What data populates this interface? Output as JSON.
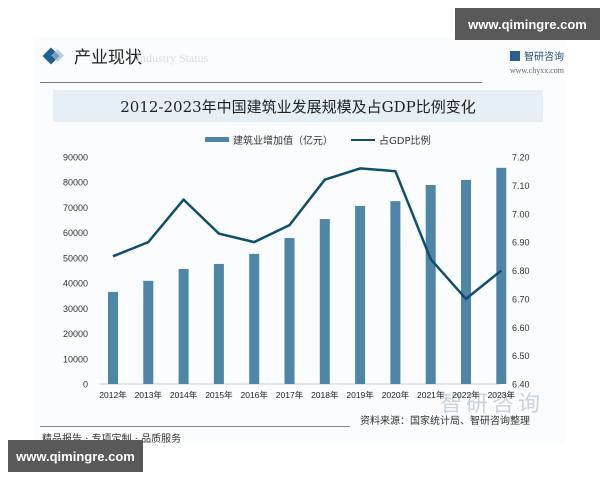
{
  "watermark": {
    "site": "www.qimingre.com"
  },
  "header": {
    "section_title": "产业现状",
    "section_subtitle": "Industry Status",
    "brand_name": "智研咨询",
    "brand_url": "www.chyxx.com"
  },
  "footer": {
    "slogan": "精品报告 · 专项定制 · 品质服务",
    "source": "资料来源：国家统计局、智研咨询整理",
    "watermark_brand": "智研咨询"
  },
  "colors": {
    "bar": "#4e86a8",
    "line": "#0d4f6c",
    "title_band": "#e6eef6"
  },
  "chart_data": {
    "type": "bar",
    "title": "2012-2023年中国建筑业发展规模及占GDP比例变化",
    "categories": [
      "2012年",
      "2013年",
      "2014年",
      "2015年",
      "2016年",
      "2017年",
      "2018年",
      "2019年",
      "2020年",
      "2021年",
      "2022年",
      "2023年"
    ],
    "series": [
      {
        "name": "建筑业增加值（亿元）",
        "type": "bar",
        "axis": "left",
        "values": [
          36500,
          40900,
          45600,
          47600,
          51600,
          57900,
          65400,
          70600,
          72500,
          78900,
          80900,
          85700
        ]
      },
      {
        "name": "占GDP比例",
        "type": "line",
        "axis": "right",
        "values": [
          6.85,
          6.9,
          7.05,
          6.93,
          6.9,
          6.96,
          7.12,
          7.16,
          7.15,
          6.84,
          6.7,
          6.8
        ]
      }
    ],
    "left_axis": {
      "ylim": [
        0,
        90000
      ],
      "ticks": [
        "0",
        "10000",
        "20000",
        "30000",
        "40000",
        "50000",
        "60000",
        "70000",
        "80000",
        "90000"
      ]
    },
    "right_axis": {
      "ylim": [
        6.4,
        7.2
      ],
      "ticks": [
        "6.40",
        "6.50",
        "6.60",
        "6.70",
        "6.80",
        "6.90",
        "7.00",
        "7.10",
        "7.20"
      ]
    },
    "legend_position": "top",
    "grid": false
  }
}
